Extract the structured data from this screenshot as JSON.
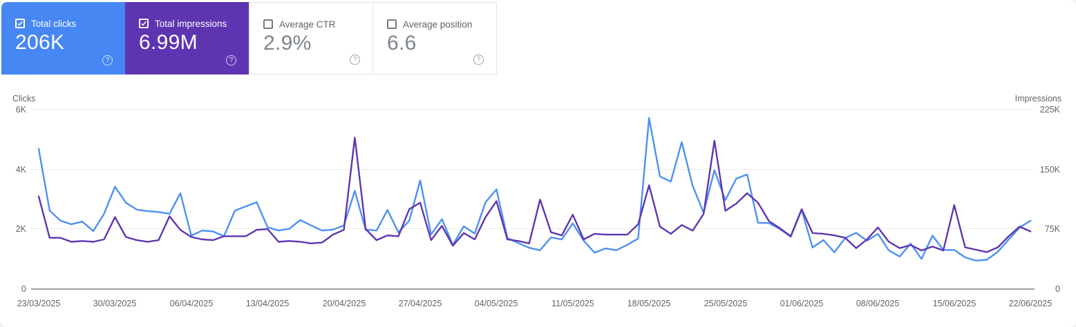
{
  "cards": [
    {
      "id": "total-clicks",
      "label": "Total clicks",
      "value": "206K",
      "checked": true,
      "bg": "#4687f3"
    },
    {
      "id": "total-impressions",
      "label": "Total impressions",
      "value": "6.99M",
      "checked": true,
      "bg": "#5e35b1"
    },
    {
      "id": "average-ctr",
      "label": "Average CTR",
      "value": "2.9%",
      "checked": false,
      "bg": ""
    },
    {
      "id": "average-position",
      "label": "Average position",
      "value": "6.6",
      "checked": false,
      "bg": ""
    }
  ],
  "chart_data": {
    "type": "line",
    "x_unit": "day",
    "x_start": "23/03/2025",
    "x_end": "22/06/2025",
    "grid": true,
    "legend": "none",
    "x_tick_labels": [
      "23/03/2025",
      "30/03/2025",
      "06/04/2025",
      "13/04/2025",
      "20/04/2025",
      "27/04/2025",
      "04/05/2025",
      "11/05/2025",
      "18/05/2025",
      "25/05/2025",
      "01/06/2025",
      "08/06/2025",
      "15/06/2025",
      "22/06/2025"
    ],
    "x_tick_day_index": [
      0,
      7,
      14,
      21,
      28,
      35,
      42,
      49,
      56,
      63,
      70,
      77,
      84,
      91
    ],
    "left_axis": {
      "label": "Clicks",
      "max": 6000,
      "tick_values": [
        0,
        2000,
        4000,
        6000
      ],
      "tick_labels": [
        "0",
        "2K",
        "4K",
        "6K"
      ]
    },
    "right_axis": {
      "label": "Impressions",
      "max": 225000,
      "tick_values": [
        0,
        75000,
        150000,
        225000
      ],
      "tick_labels": [
        "0",
        "75K",
        "150K",
        "225K"
      ]
    },
    "series": [
      {
        "name": "Total clicks",
        "axis": "left",
        "color": "#4d90f2",
        "values": [
          4690,
          2620,
          2280,
          2160,
          2250,
          1930,
          2510,
          3420,
          2880,
          2650,
          2600,
          2570,
          2510,
          3200,
          1780,
          1950,
          1920,
          1760,
          2620,
          2760,
          2900,
          2060,
          1950,
          2010,
          2300,
          2120,
          1950,
          1980,
          2120,
          3280,
          1980,
          1950,
          2640,
          1890,
          2280,
          3630,
          1820,
          2330,
          1470,
          2090,
          1850,
          2900,
          3330,
          1700,
          1530,
          1370,
          1290,
          1720,
          1650,
          2190,
          1610,
          1210,
          1350,
          1290,
          1470,
          1680,
          5720,
          3760,
          3590,
          4910,
          3450,
          2550,
          3970,
          2970,
          3690,
          3830,
          2210,
          2200,
          2000,
          1740,
          2640,
          1380,
          1630,
          1220,
          1700,
          1870,
          1610,
          1840,
          1280,
          1080,
          1510,
          1000,
          1780,
          1300,
          1300,
          1050,
          940,
          970,
          1240,
          1650,
          2050,
          2280
        ]
      },
      {
        "name": "Total impressions",
        "axis": "right",
        "color": "#5e35b1",
        "values": [
          116000,
          64000,
          64000,
          59000,
          60000,
          59000,
          62000,
          90000,
          65000,
          61000,
          59000,
          61000,
          91000,
          74000,
          65000,
          62000,
          61000,
          66000,
          66000,
          66000,
          74000,
          75000,
          59000,
          60000,
          59000,
          57000,
          58000,
          68000,
          74000,
          190000,
          75000,
          61000,
          67000,
          66000,
          100000,
          108000,
          61000,
          79000,
          54000,
          70000,
          62000,
          90000,
          110000,
          62000,
          60000,
          57000,
          112000,
          71000,
          67000,
          93000,
          62000,
          69000,
          68000,
          68000,
          68000,
          81000,
          130000,
          78000,
          69000,
          80000,
          73000,
          94000,
          186000,
          98000,
          107000,
          120000,
          108000,
          85000,
          76000,
          66000,
          100000,
          70000,
          69000,
          67000,
          64000,
          51000,
          62000,
          77000,
          59000,
          51000,
          55000,
          48000,
          53000,
          48000,
          105000,
          52000,
          49000,
          46000,
          52000,
          66000,
          78000,
          72000
        ]
      }
    ]
  }
}
